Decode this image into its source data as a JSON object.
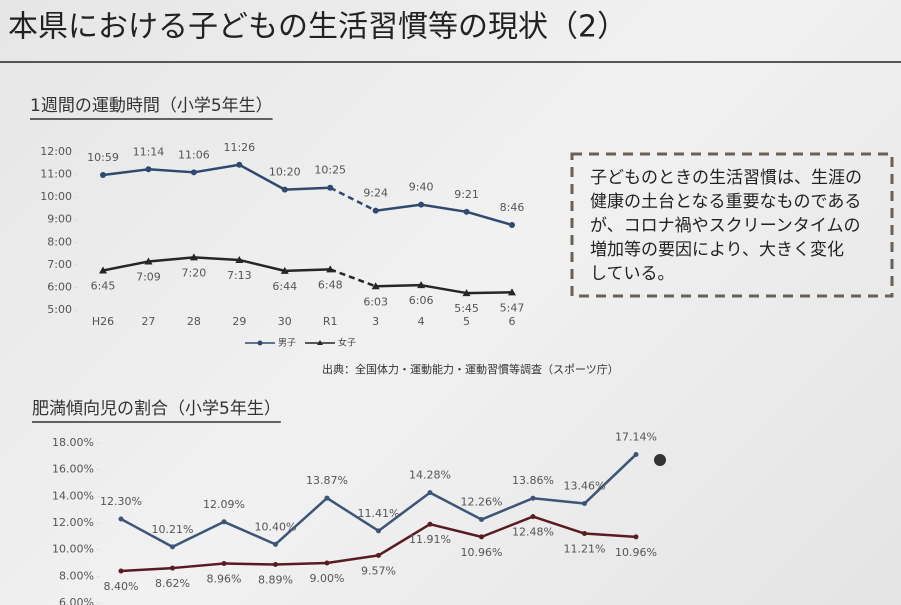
{
  "title": "本県における子どもの生活習慣等の現状（2）",
  "note": [
    "子どものときの生活習慣は、生涯の",
    "健康の土台となる重要なものである",
    "が、コロナ禍やスクリーンタイムの",
    "増加等の要因により、大きく変化",
    "している。"
  ],
  "chart_data": [
    {
      "type": "line",
      "title": "1週間の運動時間（小学5年生）",
      "categories": [
        "H26",
        "27",
        "28",
        "29",
        "30",
        "R1",
        "3",
        "4",
        "5",
        "6"
      ],
      "series": [
        {
          "name": "男子",
          "color": "#2f4a6e",
          "values": [
            10.9833,
            11.2333,
            11.1,
            11.4333,
            10.3333,
            10.4167,
            9.4,
            9.6667,
            9.35,
            8.7667
          ],
          "value_labels": [
            "10:59",
            "11:14",
            "11:06",
            "11:26",
            "10:20",
            "10:25",
            "9:24",
            "9:40",
            "9:21",
            "8:46"
          ]
        },
        {
          "name": "女子",
          "color": "#262626",
          "values": [
            6.75,
            7.15,
            7.3333,
            7.2167,
            6.7333,
            6.8,
            6.05,
            6.1,
            5.75,
            5.7833
          ],
          "value_labels": [
            "6:45",
            "7:09",
            "7:20",
            "7:13",
            "6:44",
            "6:48",
            "6:03",
            "6:06",
            "5:45",
            "5:47"
          ]
        }
      ],
      "ylim": [
        5,
        12
      ],
      "yticks": [
        {
          "value": 5,
          "label": "5:00"
        },
        {
          "value": 6,
          "label": "6:00"
        },
        {
          "value": 7,
          "label": "7:00"
        },
        {
          "value": 8,
          "label": "8:00"
        },
        {
          "value": 9,
          "label": "9:00"
        },
        {
          "value": 10,
          "label": "10:00"
        },
        {
          "value": 11,
          "label": "11:00"
        },
        {
          "value": 12,
          "label": "12:00"
        }
      ],
      "dashed_segments": [
        5
      ],
      "legend": "bottom",
      "source": "出典：全国体力・運動能力・運動習慣等調査（スポーツ庁）"
    },
    {
      "type": "line",
      "title": "肥満傾向児の割合（小学5年生）",
      "categories": [
        null,
        null,
        null,
        null,
        null,
        null,
        null,
        null,
        null,
        null,
        null
      ],
      "series": [
        {
          "color": "#3d5577",
          "values": [
            12.3,
            10.21,
            12.09,
            10.4,
            13.87,
            11.41,
            14.28,
            12.26,
            13.86,
            13.46,
            17.14
          ],
          "value_labels": [
            "12.30%",
            "10.21%",
            "12.09%",
            "10.40%",
            "13.87%",
            "11.41%",
            "14.28%",
            "12.26%",
            "13.86%",
            "13.46%",
            "17.14%"
          ]
        },
        {
          "color": "#5a1a22",
          "values": [
            8.4,
            8.62,
            8.96,
            8.89,
            9.0,
            9.57,
            11.91,
            10.96,
            12.48,
            11.21,
            10.96
          ],
          "value_labels": [
            "8.40%",
            "8.62%",
            "8.96%",
            "8.89%",
            "9.00%",
            "9.57%",
            "11.91%",
            "10.96%",
            "12.48%",
            "11.21%",
            "10.96%"
          ]
        }
      ],
      "ylim": [
        6,
        18
      ],
      "yticks": [
        {
          "value": 6,
          "label": "6.00%"
        },
        {
          "value": 8,
          "label": "8.00%"
        },
        {
          "value": 10,
          "label": "10.00%"
        },
        {
          "value": 12,
          "label": "12.00%"
        },
        {
          "value": 14,
          "label": "14.00%"
        },
        {
          "value": 16,
          "label": "16.00%"
        },
        {
          "value": 18,
          "label": "18.00%"
        }
      ]
    }
  ]
}
